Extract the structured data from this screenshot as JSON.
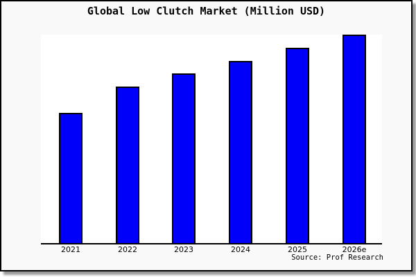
{
  "chart_data": {
    "type": "bar",
    "title": "Global Low Clutch Market (Million USD)",
    "categories": [
      "2021",
      "2022",
      "2023",
      "2024",
      "2025",
      "2026e"
    ],
    "values": [
      100,
      120,
      130,
      140,
      150,
      160
    ],
    "values_are_estimates": true,
    "xlabel": "",
    "ylabel": "",
    "ylim": [
      0,
      160
    ],
    "grid": false,
    "legend": false,
    "y_axis_labels_visible": false,
    "bar_color": "#0000fa",
    "bar_border_color": "#000000",
    "source": "Source: Prof Research"
  },
  "colors": {
    "figure_background": "#f9f9f9",
    "plot_background": "#ffffff",
    "frame_border": "#000000",
    "shadow": "#999999",
    "text": "#000000"
  }
}
